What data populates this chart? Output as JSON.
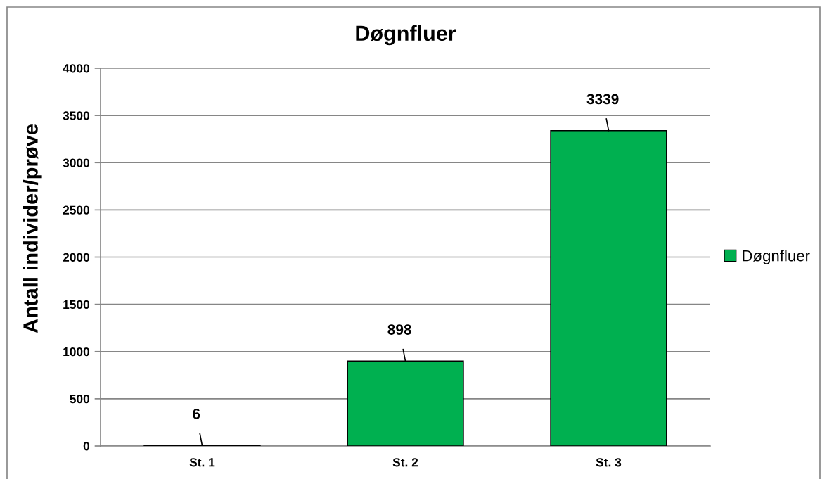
{
  "chart_data": {
    "type": "bar",
    "title": "Døgnfluer",
    "ylabel": "Antall individer/prøve",
    "categories": [
      "St. 1",
      "St. 2",
      "St. 3"
    ],
    "series": [
      {
        "name": "Døgnfluer",
        "color": "#00b050",
        "values": [
          6,
          898,
          3339
        ]
      }
    ],
    "ylim": [
      0,
      4000
    ],
    "yticks": [
      0,
      500,
      1000,
      1500,
      2000,
      2500,
      3000,
      3500,
      4000
    ],
    "grid": "y",
    "legend": "right",
    "data_labels": true
  }
}
